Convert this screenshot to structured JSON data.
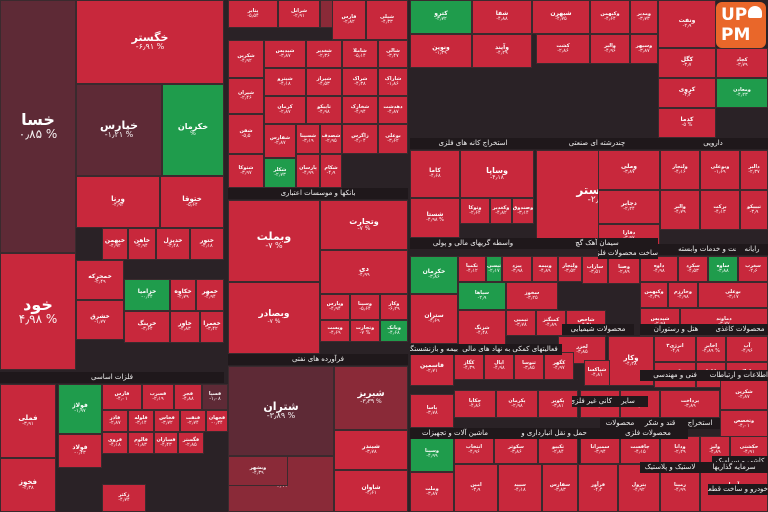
{
  "chart_data": {
    "type": "treemap",
    "colors": {
      "neg": "#c8283c",
      "neg_light": "#d3384a",
      "neg_dark": "#8a2a38",
      "very_dark": "#5e2a36",
      "neutral": "#4a3a40",
      "pos": "#1f9c4c",
      "pos_light": "#2db05a"
    },
    "sectors": [
      "بانکها و موسسات اعتباری",
      "استخراج کانه های فلزی",
      "چندرشته ای صنعتی",
      "دارویی",
      "واسطه گریهای مالی و پولی",
      "سیمان آهک گچ",
      "ساخت محصولات فلزی",
      "زراعت و خدمات وابسته",
      "رایانه",
      "فرآورده های نفتی",
      "بیمه و بازنشستگی",
      "فعالیتهای کمکی به نهاد های مالی",
      "محصولات شیمیایی",
      "هتل و رستوران",
      "محصولات کاغذی",
      "فلزات اساسی",
      "کاشی و سرامیک",
      "اطلاعات و ارتباطات",
      "فنی و مهندسی",
      "ماشین آلات و تجهیزات",
      "حمل و نقل انبارداری و",
      "محصولات فلزی",
      "قند و شکر",
      "محصولات",
      "استخراج",
      "سایر",
      "کانی غیر فلزی",
      "خودرو و ساخت قطعات",
      "لاستیک و پلاستیک",
      "سرمایه گذاریها"
    ],
    "tiles": [
      {
        "name": "خسا",
        "change": "۰٫۸۵ %"
      },
      {
        "name": "خود",
        "change": "۴٫۹۸ %"
      },
      {
        "name": "خگستر",
        "change": "-۶٫۹۱ %"
      },
      {
        "name": "خپارس",
        "change": "-۱٫۲۱ %"
      },
      {
        "name": "خکرمان",
        "change": "%"
      },
      {
        "name": "ورنا",
        "change": "-۴٫۹۴"
      },
      {
        "name": "ختوقا",
        "change": "-۵٫۶۴"
      },
      {
        "name": "خبهمن",
        "change": "-۴٫۹۲"
      },
      {
        "name": "خاهن",
        "change": "-۴٫۹۴"
      },
      {
        "name": "خدیزل",
        "change": "-۳٫۴۸"
      },
      {
        "name": "ختور",
        "change": "-۲٫۱۸"
      },
      {
        "name": "خزامیا",
        "change": "-۰٫۲۴"
      },
      {
        "name": "خکاوه",
        "change": "-۲٫۷۹"
      },
      {
        "name": "خمهر",
        "change": "-۴٫۹۴"
      },
      {
        "name": "خمحرکه",
        "change": "-۲٫۴۹"
      },
      {
        "name": "خشرق",
        "change": "-۱٫۷۷"
      },
      {
        "name": "خرینگ",
        "change": "-۳٫۶۴"
      },
      {
        "name": "خاور",
        "change": "-۲٫۸۳"
      },
      {
        "name": "خعمرا",
        "change": "-۳٫۴۲"
      },
      {
        "name": "فملی",
        "change": "-۳٫۹۱"
      },
      {
        "name": "فخوز",
        "change": "-۲٫۳۸"
      },
      {
        "name": "فولاژ",
        "change": "-۱٫۹۷"
      },
      {
        "name": "فولاد",
        "change": "-۰٫۴۳"
      },
      {
        "name": "فارس",
        "change": "-۴٫۰۱"
      },
      {
        "name": "فسرب",
        "change": "-۲٫۱۹"
      },
      {
        "name": "فجر",
        "change": "-۴٫۸۸"
      },
      {
        "name": "فسپا",
        "change": "-۱٫۰۸"
      },
      {
        "name": "فاذر",
        "change": "-۲٫۸۷"
      },
      {
        "name": "فلوله",
        "change": "-۳٫۱۴"
      },
      {
        "name": "فخاس",
        "change": "-۳٫۷۲"
      },
      {
        "name": "فنفت",
        "change": "-۲٫۷۴"
      },
      {
        "name": "فجهان",
        "change": "-۰٫۳۴"
      },
      {
        "name": "فروی",
        "change": "-۴٫۱۸"
      },
      {
        "name": "فالوم",
        "change": "-۱٫۸۳"
      },
      {
        "name": "فسازان",
        "change": "-۴٫۴۳"
      },
      {
        "name": "فگستر",
        "change": "-۲٫۸۵"
      },
      {
        "name": "زکثر",
        "change": "-۴٫۷۴"
      },
      {
        "name": "وبملت",
        "change": "-۷ %"
      },
      {
        "name": "وبصادر",
        "change": "-۷ %"
      },
      {
        "name": "وتجارت",
        "change": "-۷ %"
      },
      {
        "name": "دی",
        "change": "-۴٫۹۹"
      },
      {
        "name": "وپارس",
        "change": "-۴٫۹۴"
      },
      {
        "name": "وسینا",
        "change": "-۵٫۶۴"
      },
      {
        "name": "وکار",
        "change": "-۶٫۲۹"
      },
      {
        "name": "وپست",
        "change": "-۴٫۶۹"
      },
      {
        "name": "وتجارت",
        "change": "-۷ %"
      },
      {
        "name": "وبانک",
        "change": "-۴٫۶۸"
      },
      {
        "name": "شتران",
        "change": "-۳٫۸۹ %"
      },
      {
        "name": "شبریز",
        "change": "-۳٫۳۹ %"
      },
      {
        "name": "شپنا",
        "change": "-۴٫۹۹"
      },
      {
        "name": "شبندر",
        "change": "-۳٫۷۸"
      },
      {
        "name": "شاوان",
        "change": "-۴٫۶۱"
      },
      {
        "name": "شرانل",
        "change": "-۲٫۹۱"
      },
      {
        "name": "شسپا",
        "change": "-۴٫۱۵"
      },
      {
        "name": "شخاش",
        "change": "-۱٫۷۴"
      },
      {
        "name": "پتایر",
        "change": "-۵٫۵۴"
      },
      {
        "name": "فارس",
        "change": "-۲٫۸۲"
      },
      {
        "name": "شپلی",
        "change": "-۴٫۳۳"
      },
      {
        "name": "شکربن",
        "change": "-۴٫۹۲"
      },
      {
        "name": "شیدیس",
        "change": "-۳٫۸۷"
      },
      {
        "name": "شغدیر",
        "change": "-۲٫۳۶"
      },
      {
        "name": "شاملا",
        "change": "-۵٫۱۴"
      },
      {
        "name": "شالی",
        "change": "-۳٫۴۷"
      },
      {
        "name": "شیران",
        "change": "-۲٫۴۶"
      },
      {
        "name": "شپترو",
        "change": "-۴٫۱۸"
      },
      {
        "name": "شیراز",
        "change": "-۴٫۵۳"
      },
      {
        "name": "شراک",
        "change": "-۴٫۳۸"
      },
      {
        "name": "شاراک",
        "change": "-۱٫۸۶"
      },
      {
        "name": "شفن",
        "change": "-۵٫۵"
      },
      {
        "name": "کرمان",
        "change": "-۲٫۸۷"
      },
      {
        "name": "تاپیکو",
        "change": "-۴٫۹۸"
      },
      {
        "name": "شخارک",
        "change": "-۴٫۹۴"
      },
      {
        "name": "دهدشت",
        "change": "-۴٫۸۷"
      },
      {
        "name": "شتوکا",
        "change": "-۳٫۹۷"
      },
      {
        "name": "شکلر",
        "change": "-۲٫۷۳"
      },
      {
        "name": "شسینا",
        "change": "-۳٫۱۹"
      },
      {
        "name": "شصدف",
        "change": "-۲٫۹۵"
      },
      {
        "name": "زاگرس",
        "change": "-۴٫۰۴"
      },
      {
        "name": "بوعلی",
        "change": "-۳٫۶۲"
      },
      {
        "name": "شفارس",
        "change": "-۲٫۸۷"
      },
      {
        "name": "پارسان",
        "change": "-۴٫۹۹"
      },
      {
        "name": "شکام",
        "change": "-۴٫۹"
      },
      {
        "name": "کترو",
        "change": "-۳٫۷۲"
      },
      {
        "name": "شفا",
        "change": "-۴٫۸۸"
      },
      {
        "name": "ونوین",
        "change": "-۱٫۳۹"
      },
      {
        "name": "وآیند",
        "change": "-۴٫۲۹"
      },
      {
        "name": "شبهرن",
        "change": "-۴٫۷۵"
      },
      {
        "name": "وکبهمن",
        "change": "-۴٫۶۴"
      },
      {
        "name": "ومدیر",
        "change": "-۳٫۷۳"
      },
      {
        "name": "کشت",
        "change": "-۲٫۸۶"
      },
      {
        "name": "والبر",
        "change": "-۴٫۹۶"
      },
      {
        "name": "وسپهر",
        "change": "-۳٫۸۷"
      },
      {
        "name": "ونفت",
        "change": "-۲٫۹"
      },
      {
        "name": "کگل",
        "change": "-۳٫۷"
      },
      {
        "name": "کچاد",
        "change": "-۳٫۷۹"
      },
      {
        "name": "کروی",
        "change": "-۳٫۲"
      },
      {
        "name": "کدما",
        "change": "-۵ %"
      },
      {
        "name": "ومعادن",
        "change": "-۴٫۲۳"
      },
      {
        "name": "وساپا",
        "change": "-۴٫۱۸"
      },
      {
        "name": "کاما",
        "change": "-۴٫۶۸"
      },
      {
        "name": "شستا",
        "change": "-۴٫۹۸ %"
      },
      {
        "name": "وتوکا",
        "change": "-۲٫۶۴"
      },
      {
        "name": "وکغدیر",
        "change": "-۴٫۸۲"
      },
      {
        "name": "وصندوق",
        "change": "-۳٫۱۴"
      },
      {
        "name": "شگستر",
        "change": "-۲٫۴۸"
      },
      {
        "name": "وملی",
        "change": "-۳٫۸۷"
      },
      {
        "name": "ولتجار",
        "change": "-۴٫۱۶"
      },
      {
        "name": "وبوعلی",
        "change": "-۱٫۶۹"
      },
      {
        "name": "دالبر",
        "change": "-۲٫۳۷"
      },
      {
        "name": "والبر",
        "change": "-۴٫۷۹"
      },
      {
        "name": "برکت",
        "change": "-۴٫۱۳"
      },
      {
        "name": "تیپیکو",
        "change": "-۳٫۹"
      },
      {
        "name": "دجابر",
        "change": "-۲٫۲۴"
      },
      {
        "name": "دفارا",
        "change": "-۳٫۹۷"
      },
      {
        "name": "خکرمان",
        "change": "-۳٫۸۶"
      },
      {
        "name": "تکمبا",
        "change": "-۴٫۱۲"
      },
      {
        "name": "تپسی",
        "change": "-۲٫۱۷"
      },
      {
        "name": "پیزد",
        "change": "-۳٫۹۸"
      },
      {
        "name": "وبیمه",
        "change": "-۴٫۸۹"
      },
      {
        "name": "ولتجار",
        "change": "-۳٫۵۲"
      },
      {
        "name": "ساراب",
        "change": "-۳٫۵۱"
      },
      {
        "name": "وصنا",
        "change": "-۲٫۸۹"
      },
      {
        "name": "داوه",
        "change": "-۴٫۹۸"
      },
      {
        "name": "سکرد",
        "change": "-۴٫۵۳"
      },
      {
        "name": "ساوه",
        "change": "-۳٫۸۸"
      },
      {
        "name": "سغرب",
        "change": "-۲٫۶"
      },
      {
        "name": "ستران",
        "change": "-۴٫۶۹"
      },
      {
        "name": "سپاها",
        "change": "-۲٫۹"
      },
      {
        "name": "سخوز",
        "change": "-۳٫۲۵"
      },
      {
        "name": "وکار",
        "change": "-۴٫۲۸"
      },
      {
        "name": "انرژی۳",
        "change": "-۴٫۹"
      },
      {
        "name": "اخابر",
        "change": "-۴٫۸۹ %"
      },
      {
        "name": "آپ",
        "change": "-۴٫۹۶"
      },
      {
        "name": "وکغدیر",
        "change": "-۳٫۸۳"
      },
      {
        "name": "کاما",
        "change": "-۲٫۱۴"
      },
      {
        "name": "فاراک",
        "change": "-۴٫۸۷"
      },
      {
        "name": "لخزر",
        "change": "-۳٫۸۵"
      },
      {
        "name": "فاسمین",
        "change": "-۲٫۷۱"
      },
      {
        "name": "کگاز",
        "change": "-۴٫۳۹"
      },
      {
        "name": "اپال",
        "change": "-۴٫۹۸"
      },
      {
        "name": "ثنوسا",
        "change": "-۳٫۸۵"
      },
      {
        "name": "کگهر",
        "change": "-۴٫۹۷"
      },
      {
        "name": "شپاکسا",
        "change": "-۴٫۸۱"
      },
      {
        "name": "شکرین",
        "change": "-۲٫۸۷"
      },
      {
        "name": "پاسا",
        "change": "-۳٫۷۸"
      },
      {
        "name": "چکاپا",
        "change": "-۴٫۸۶"
      },
      {
        "name": "پکرمان",
        "change": "-۲٫۹۸"
      },
      {
        "name": "پکویر",
        "change": "-۳٫۸۱"
      },
      {
        "name": "شلعاب",
        "change": "-۴٫۹۹"
      },
      {
        "name": "شجم",
        "change": "-۴٫۲۷"
      },
      {
        "name": "پرداخت",
        "change": "-۳٫۸۹"
      },
      {
        "name": "وتخصص",
        "change": "-۴٫۰۱"
      },
      {
        "name": "وسینا",
        "change": "-۴٫۹۹"
      },
      {
        "name": "انتخاب",
        "change": "-۴٫۹۶"
      },
      {
        "name": "سکوثر",
        "change": "-۳٫۸۶"
      },
      {
        "name": "تکیپو",
        "change": "-۲٫۸۴"
      },
      {
        "name": "سمیرانا",
        "change": "-۳٫۹۴"
      },
      {
        "name": "چافست",
        "change": "-۴٫۱۵"
      },
      {
        "name": "ودانا",
        "change": "-۲٫۲۹"
      },
      {
        "name": "ولیز",
        "change": "-۴٫۸۹"
      },
      {
        "name": "حکشتی",
        "change": "-۴٫۹۱"
      },
      {
        "name": "وملت",
        "change": "-۳٫۸۷"
      },
      {
        "name": "امین",
        "change": "-۳٫۹"
      },
      {
        "name": "سپید",
        "change": "-۴٫۱۸"
      },
      {
        "name": "سفارس",
        "change": "-۳٫۸۳"
      },
      {
        "name": "فرآور",
        "change": "-۴٫۴"
      },
      {
        "name": "پترول",
        "change": "-۴٫۹۲"
      },
      {
        "name": "رمپنا",
        "change": "-۴٫۹۹"
      },
      {
        "name": "آسیا",
        "change": "-۴٫۱۸"
      },
      {
        "name": "وکبهمن",
        "change": "-۴٫۳۹"
      },
      {
        "name": "وخارزم",
        "change": "-۴٫۹۸"
      },
      {
        "name": "بوعلی",
        "change": "-۳٫۱۷"
      },
      {
        "name": "تپمپی",
        "change": "-۳٫۷۸"
      },
      {
        "name": "کمنگنز",
        "change": "-۴٫۸۹"
      },
      {
        "name": "شاخص",
        "change": "-۴٫۳۸"
      },
      {
        "name": "شپدیس",
        "change": "-۲٫۹۸"
      },
      {
        "name": "دماوند",
        "change": "-۳٫۷۷"
      },
      {
        "name": "شزنگ",
        "change": "-۴٫۴۸"
      },
      {
        "name": "وبشهر",
        "change": "-۴٫۳۹"
      },
      {
        "name": "لاستیک",
        "change": "-۴٫۷۳"
      },
      {
        "name": "لسرما",
        "change": "-۳٫۸۵"
      },
      {
        "name": "کسعدی",
        "change": "-۴٫۶۹"
      },
      {
        "name": "قثابت",
        "change": "-۴٫۶۱"
      },
      {
        "name": "کرازی",
        "change": "-۳٫۶۸"
      },
      {
        "name": "کساپا",
        "change": "-۲٫۳۹"
      },
      {
        "name": "تکنو",
        "change": "-۴٫۲۹"
      },
      {
        "name": "وسبحان",
        "change": "-۳٫۵۳"
      },
      {
        "name": "وسپا",
        "change": "-۴٫۸"
      },
      {
        "name": "خفنر",
        "change": "-۲٫۹۴"
      },
      {
        "name": "وصنعت",
        "change": "-۳٫۶۵"
      },
      {
        "name": "چیپر",
        "change": "-۴٫۹۸"
      },
      {
        "name": "تابا",
        "change": "-۴٫۸۳"
      },
      {
        "name": "جم",
        "change": "-۴٫۱۲"
      }
    ]
  },
  "logo": {
    "text": "UP PM"
  }
}
